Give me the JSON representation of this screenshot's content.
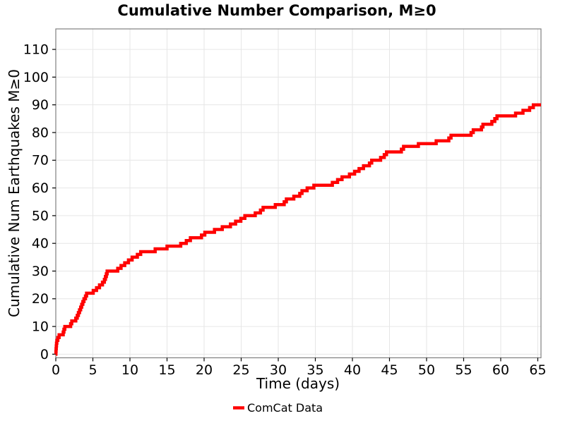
{
  "colors": {
    "line": "#ff0000",
    "grid": "#e6e6e6",
    "spine": "#808080",
    "tick": "#000000",
    "text": "#000000",
    "background": "#ffffff"
  },
  "chart_data": {
    "type": "line",
    "step_mode": "post",
    "title": "Cumulative Number Comparison, M≥0",
    "xlabel": "Time (days)",
    "ylabel": "Cumulative Num Earthquakes M≥0",
    "legend": [
      {
        "label": "ComCat Data",
        "color": "#ff0000"
      }
    ],
    "legend_position": "bottom-center",
    "grid": true,
    "xlim": [
      0,
      65.43
    ],
    "ylim": [
      -1.3,
      117.4
    ],
    "x_ticks": [
      0,
      5,
      10,
      15,
      20,
      25,
      30,
      35,
      40,
      45,
      50,
      55,
      60,
      65
    ],
    "y_ticks": [
      0,
      10,
      20,
      30,
      40,
      50,
      60,
      70,
      80,
      90,
      100,
      110
    ],
    "series": [
      {
        "name": "ComCat Data",
        "color": "#ff0000",
        "start_time": 0,
        "start_count": 0,
        "final_time": 65.43,
        "final_count": 90,
        "event_times_days": [
          0.02,
          0.04,
          0.07,
          0.1,
          0.14,
          0.28,
          0.45,
          1.0,
          1.1,
          1.22,
          2.0,
          2.15,
          2.7,
          2.9,
          3.05,
          3.2,
          3.35,
          3.5,
          3.65,
          3.8,
          4.0,
          4.15,
          5.05,
          5.5,
          5.9,
          6.3,
          6.55,
          6.7,
          6.82,
          6.92,
          8.35,
          8.8,
          9.3,
          9.8,
          10.3,
          11.0,
          11.45,
          13.4,
          15.0,
          16.85,
          17.6,
          18.15,
          19.65,
          20.1,
          21.4,
          22.45,
          23.55,
          24.25,
          24.95,
          25.5,
          26.9,
          27.6,
          27.95,
          29.6,
          30.8,
          31.1,
          32.1,
          32.9,
          33.2,
          33.9,
          34.8,
          37.3,
          38.0,
          38.6,
          39.6,
          40.3,
          40.9,
          41.5,
          42.3,
          42.6,
          43.8,
          44.3,
          44.6,
          46.6,
          46.9,
          48.9,
          51.3,
          53.0,
          53.3,
          56.0,
          56.3,
          57.4,
          57.6,
          58.8,
          59.2,
          59.5,
          62.0,
          63.0,
          63.9,
          64.4
        ],
        "cumulative_counts": [
          1,
          2,
          3,
          4,
          5,
          6,
          7,
          8,
          9,
          10,
          11,
          12,
          13,
          14,
          15,
          16,
          17,
          18,
          19,
          20,
          21,
          22,
          23,
          24,
          25,
          26,
          27,
          28,
          29,
          30,
          31,
          32,
          33,
          34,
          35,
          36,
          37,
          38,
          39,
          40,
          41,
          42,
          43,
          44,
          45,
          46,
          47,
          48,
          49,
          50,
          51,
          52,
          53,
          54,
          55,
          56,
          57,
          58,
          59,
          60,
          61,
          62,
          63,
          64,
          65,
          66,
          67,
          68,
          69,
          70,
          71,
          72,
          73,
          74,
          75,
          76,
          77,
          78,
          79,
          80,
          81,
          82,
          83,
          84,
          85,
          86,
          87,
          88,
          89,
          90
        ]
      }
    ]
  }
}
